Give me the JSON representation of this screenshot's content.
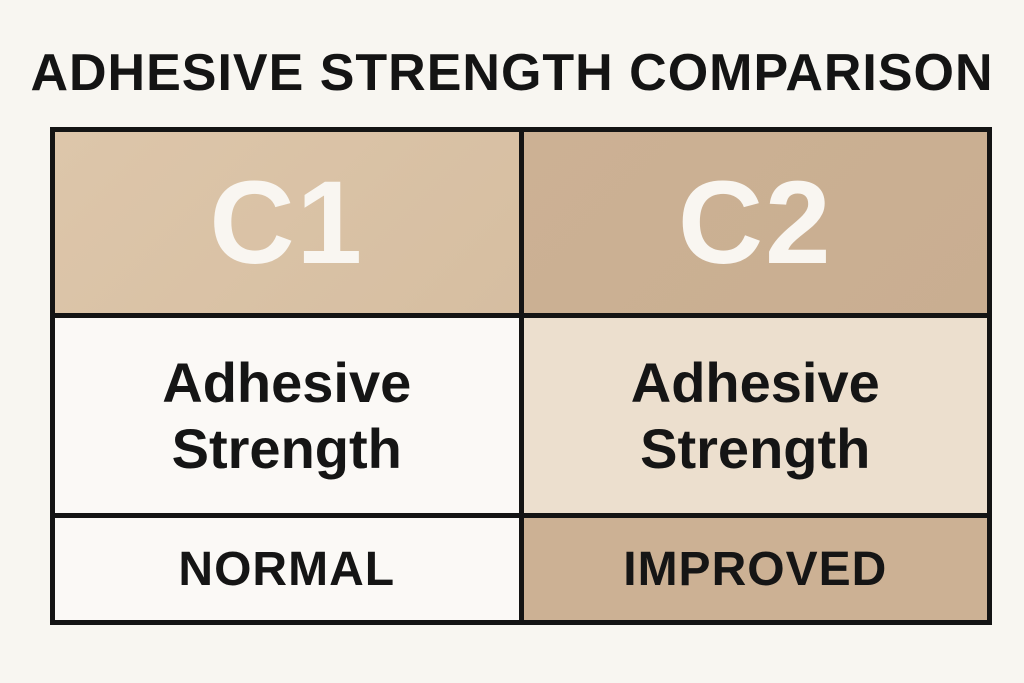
{
  "title": "ADHESIVE STRENGTH COMPARISON",
  "columns": [
    {
      "header": "C1",
      "property": "Adhesive Strength",
      "value": "NORMAL"
    },
    {
      "header": "C2",
      "property": "Adhesive Strength",
      "value": "IMPROVED"
    }
  ],
  "colors": {
    "background": "#f8f6f1",
    "border": "#141414",
    "c1_header": "#d9c2a5",
    "c2_header": "#cab092",
    "c2_property": "#ecdfce",
    "c2_value": "#ccb194",
    "header_text": "#f9f6f1"
  }
}
